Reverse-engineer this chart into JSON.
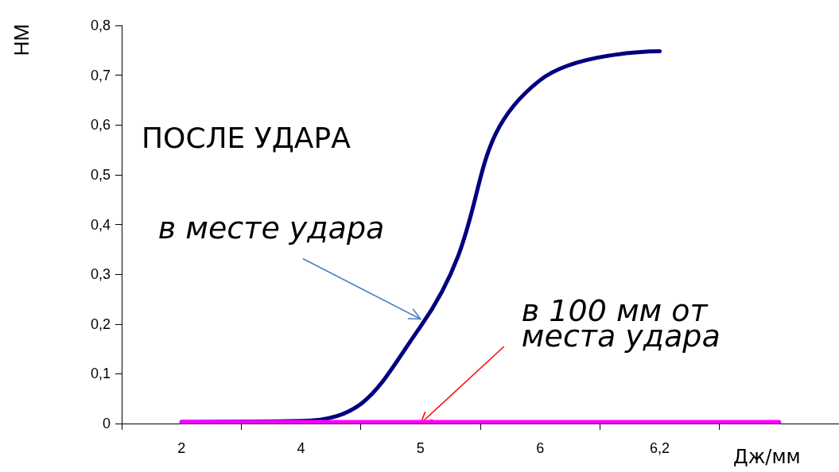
{
  "chart_data": {
    "type": "line",
    "xlabel": "Дж/мм",
    "ylabel": "НМ",
    "categories": [
      "2",
      "4",
      "5",
      "6",
      "6,2",
      null
    ],
    "series": [
      {
        "color": "#000080",
        "values": [
          0.003,
          0.005,
          0.195,
          0.69,
          0.748,
          null
        ]
      },
      {
        "color": "#ff00ff",
        "values": [
          0.003,
          0.003,
          0.003,
          0.003,
          0.003,
          0.003
        ]
      }
    ],
    "ylim": [
      0,
      0.8
    ],
    "yticks": [
      0,
      {
        "value": 0.1,
        "label": "0,1"
      },
      {
        "value": 0.2,
        "label": "0,2"
      },
      {
        "value": 0.3,
        "label": "0,3"
      },
      {
        "value": 0.4,
        "label": "0,4"
      },
      {
        "value": 0.5,
        "label": "0,5"
      },
      {
        "value": 0.6,
        "label": "0,6"
      },
      {
        "value": 0.7,
        "label": "0,7"
      },
      {
        "value": 0.8,
        "label": "0,8"
      }
    ],
    "annotations": [
      "ПОСЛЕ УДАРА",
      {
        "text": "в месте удара",
        "x": "5",
        "y": 0.21
      },
      {
        "text": "в 100 мм от\nместа удара",
        "x": "5",
        "y": 0
      }
    ],
    "grid": false,
    "marker": "none",
    "line_style": "solid"
  }
}
